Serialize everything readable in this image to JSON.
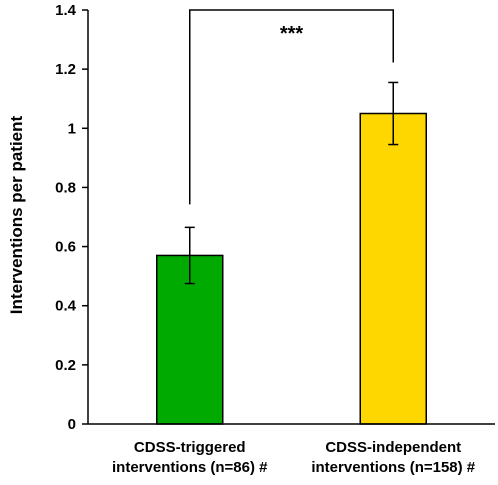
{
  "chart_data": {
    "type": "bar",
    "title": "",
    "xlabel": "",
    "ylabel": "Interventions per patient",
    "ylim": [
      0,
      1.4
    ],
    "yticks": [
      "0",
      "0.2",
      "0.4",
      "0.6",
      "0.8",
      "1",
      "1.2",
      "1.4"
    ],
    "grid": false,
    "categories": [
      [
        "CDSS-triggered",
        "interventions (n=86) #"
      ],
      [
        "CDSS-independent",
        "interventions (n=158) #"
      ]
    ],
    "values": [
      0.57,
      1.05
    ],
    "errors": [
      0.095,
      0.105
    ],
    "colors": [
      "#00AA00",
      "#FFD700"
    ],
    "significance": {
      "label": "***",
      "between": [
        0,
        1
      ]
    }
  }
}
